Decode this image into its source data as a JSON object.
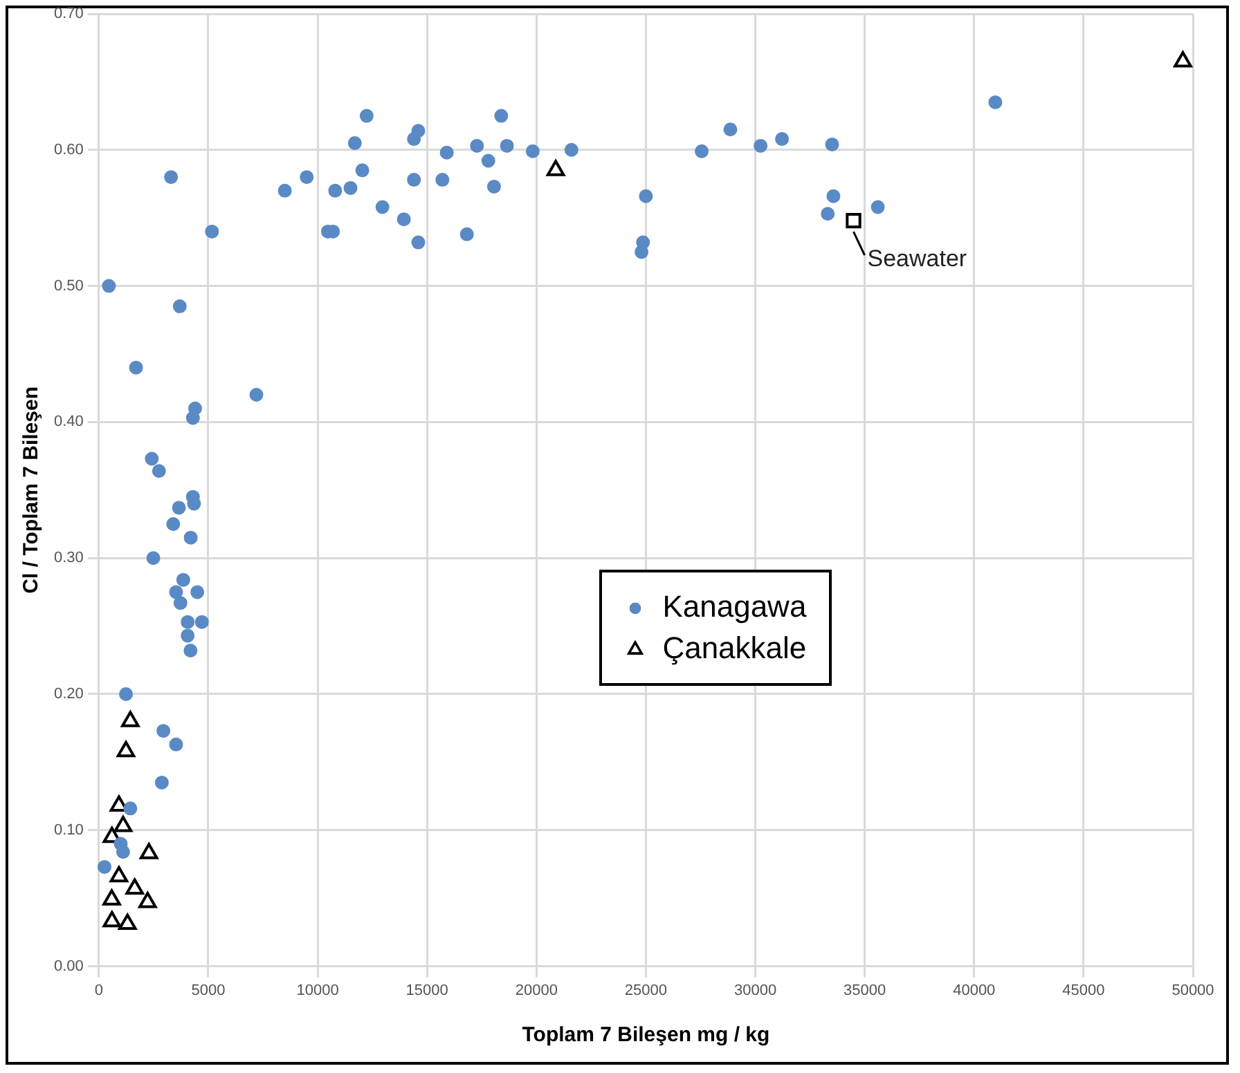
{
  "chart_data": {
    "type": "scatter",
    "xlabel": "Toplam 7 Bileşen mg / kg",
    "ylabel": "Cl / Toplam 7 Bileşen",
    "xlim": [
      0,
      50000
    ],
    "xticks": [
      0,
      5000,
      10000,
      15000,
      20000,
      25000,
      30000,
      35000,
      40000,
      45000,
      50000
    ],
    "ylim": [
      0,
      0.7
    ],
    "yticks": [
      {
        "value": 0,
        "label": "0.00"
      },
      {
        "value": 0.1,
        "label": "0.10"
      },
      {
        "value": 0.2,
        "label": "0.20"
      },
      {
        "value": 0.3,
        "label": "0.30"
      },
      {
        "value": 0.4,
        "label": "0.40"
      },
      {
        "value": 0.5,
        "label": "0.50"
      },
      {
        "value": 0.6,
        "label": "0.60"
      },
      {
        "value": 0.7,
        "label": "0.70"
      }
    ],
    "grid": true,
    "legend": "center",
    "series": [
      {
        "name": "Kanagawa",
        "color": "#5a8ac6",
        "marker": "circle",
        "x": [
          460,
          1700,
          3700,
          7200,
          4400,
          4300,
          2420,
          2750,
          4300,
          4350,
          3660,
          3400,
          4200,
          2490,
          3860,
          3530,
          4500,
          3730,
          4060,
          4710,
          4060,
          4190,
          1240,
          2950,
          3530,
          2880,
          1440,
          1110,
          260,
          1000,
          3300,
          5170,
          8500,
          9500,
          10470,
          10700,
          10800,
          11500,
          11700,
          12040,
          12240,
          12960,
          13940,
          14400,
          14600,
          14400,
          14600,
          15700,
          15900,
          16820,
          17280,
          17800,
          18060,
          18390,
          18650,
          19830,
          21600,
          25000,
          24870,
          24800,
          27550,
          28860,
          30240,
          31220,
          33510,
          33570,
          33310,
          35600,
          40970
        ],
        "values": [
          0.5,
          0.44,
          0.485,
          0.42,
          0.41,
          0.403,
          0.373,
          0.364,
          0.345,
          0.34,
          0.337,
          0.325,
          0.315,
          0.3,
          0.284,
          0.275,
          0.275,
          0.267,
          0.253,
          0.253,
          0.243,
          0.232,
          0.2,
          0.173,
          0.163,
          0.135,
          0.116,
          0.084,
          0.073,
          0.09,
          0.58,
          0.54,
          0.57,
          0.58,
          0.54,
          0.54,
          0.57,
          0.572,
          0.605,
          0.585,
          0.625,
          0.558,
          0.549,
          0.608,
          0.614,
          0.578,
          0.532,
          0.578,
          0.598,
          0.538,
          0.603,
          0.592,
          0.573,
          0.625,
          0.603,
          0.599,
          0.6,
          0.566,
          0.532,
          0.525,
          0.599,
          0.615,
          0.603,
          0.608,
          0.604,
          0.566,
          0.553,
          0.558,
          0.635
        ]
      },
      {
        "name": "Çanakkale",
        "color": "#000000",
        "marker": "triangle",
        "x": [
          1440,
          1240,
          920,
          1110,
          600,
          2290,
          920,
          1640,
          2230,
          590,
          600,
          1310,
          20880,
          49540
        ],
        "values": [
          0.18,
          0.158,
          0.118,
          0.103,
          0.095,
          0.083,
          0.066,
          0.057,
          0.047,
          0.049,
          0.033,
          0.031,
          0.585,
          0.665
        ]
      },
      {
        "name": "Seawater",
        "color": "#000000",
        "marker": "square",
        "x": [
          34490
        ],
        "values": [
          0.548
        ]
      }
    ]
  }
}
